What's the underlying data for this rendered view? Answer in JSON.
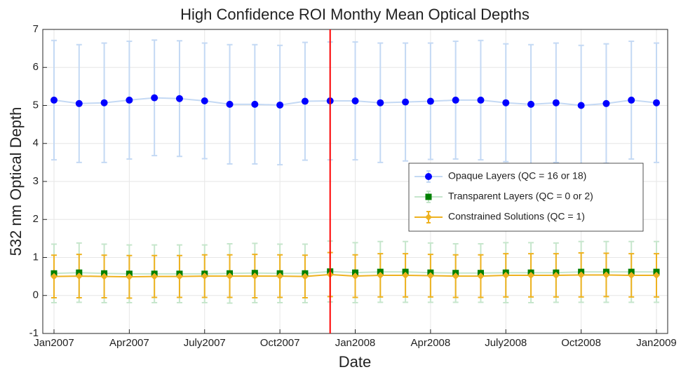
{
  "chart_data": {
    "type": "errorbar-line",
    "title": "High Confidence ROI Monthy Mean Optical Depths",
    "xlabel": "Date",
    "ylabel": "532 nm Optical Depth",
    "x": [
      "2007-01",
      "2007-02",
      "2007-03",
      "2007-04",
      "2007-05",
      "2007-06",
      "2007-07",
      "2007-08",
      "2007-09",
      "2007-10",
      "2007-11",
      "2007-12",
      "2008-01",
      "2008-02",
      "2008-03",
      "2008-04",
      "2008-05",
      "2008-06",
      "2008-07",
      "2008-08",
      "2008-09",
      "2008-10",
      "2008-11",
      "2008-12",
      "2009-01"
    ],
    "xlim": [
      "2007-01",
      "2009-01"
    ],
    "xticks": [
      {
        "value": "2007-01",
        "label": "Jan2007"
      },
      {
        "value": "2007-04",
        "label": "Apr2007"
      },
      {
        "value": "2007-07",
        "label": "July2007"
      },
      {
        "value": "2007-10",
        "label": "Oct2007"
      },
      {
        "value": "2008-01",
        "label": "Jan2008"
      },
      {
        "value": "2008-04",
        "label": "Apr2008"
      },
      {
        "value": "2008-07",
        "label": "July2008"
      },
      {
        "value": "2008-10",
        "label": "Oct2008"
      },
      {
        "value": "2009-01",
        "label": "Jan2009"
      }
    ],
    "ylim": [
      -1,
      7
    ],
    "yticks": [
      -1,
      0,
      1,
      2,
      3,
      4,
      5,
      6,
      7
    ],
    "grid": true,
    "legend": "right",
    "vline": {
      "x": "2007-12",
      "color": "#ff0000"
    },
    "series": [
      {
        "name": "Opaque Layers (QC = 16 or 18)",
        "color": "#c4d9f4",
        "marker_color": "#0000ff",
        "marker": "circle",
        "values": [
          5.14,
          5.05,
          5.07,
          5.14,
          5.2,
          5.18,
          5.12,
          5.03,
          5.03,
          5.01,
          5.11,
          5.12,
          5.12,
          5.07,
          5.09,
          5.11,
          5.14,
          5.14,
          5.07,
          5.03,
          5.07,
          5.0,
          5.05,
          5.14,
          5.07
        ],
        "errors": [
          1.57,
          1.55,
          1.57,
          1.55,
          1.52,
          1.52,
          1.52,
          1.57,
          1.57,
          1.57,
          1.55,
          1.55,
          1.55,
          1.57,
          1.55,
          1.53,
          1.55,
          1.57,
          1.55,
          1.57,
          1.57,
          1.58,
          1.57,
          1.55,
          1.57
        ]
      },
      {
        "name": "Transparent Layers (QC = 0 or 2)",
        "color": "#c6e6cc",
        "marker_color": "#008000",
        "marker": "square",
        "values": [
          0.58,
          0.6,
          0.58,
          0.57,
          0.57,
          0.57,
          0.57,
          0.58,
          0.59,
          0.58,
          0.58,
          0.63,
          0.6,
          0.62,
          0.62,
          0.6,
          0.59,
          0.59,
          0.6,
          0.6,
          0.6,
          0.62,
          0.62,
          0.62,
          0.62
        ],
        "errors": [
          0.77,
          0.78,
          0.77,
          0.76,
          0.76,
          0.76,
          0.76,
          0.78,
          0.78,
          0.77,
          0.77,
          0.8,
          0.79,
          0.8,
          0.8,
          0.78,
          0.77,
          0.77,
          0.79,
          0.79,
          0.78,
          0.8,
          0.8,
          0.8,
          0.8
        ]
      },
      {
        "name": "Constrained Solutions (QC = 1)",
        "color": "#eeb220",
        "marker_color": "#eeb220",
        "marker": "diamond",
        "values": [
          0.5,
          0.51,
          0.5,
          0.49,
          0.5,
          0.5,
          0.51,
          0.51,
          0.51,
          0.51,
          0.5,
          0.55,
          0.51,
          0.53,
          0.53,
          0.52,
          0.51,
          0.51,
          0.53,
          0.53,
          0.53,
          0.54,
          0.54,
          0.53,
          0.53
        ],
        "errors": [
          0.56,
          0.57,
          0.56,
          0.56,
          0.55,
          0.55,
          0.56,
          0.56,
          0.57,
          0.56,
          0.56,
          0.58,
          0.56,
          0.57,
          0.57,
          0.56,
          0.56,
          0.56,
          0.57,
          0.57,
          0.57,
          0.58,
          0.57,
          0.57,
          0.57
        ]
      }
    ]
  }
}
